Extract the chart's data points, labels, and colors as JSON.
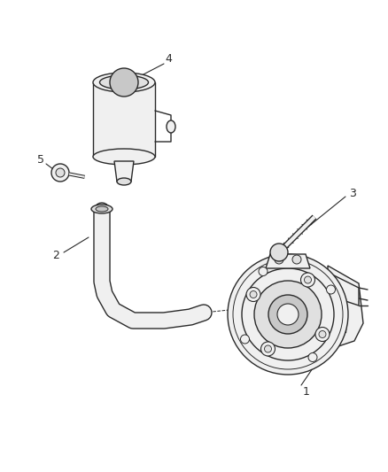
{
  "background_color": "#ffffff",
  "line_color": "#2a2a2a",
  "figsize": [
    4.38,
    5.33
  ],
  "dpi": 100,
  "fill_light": "#f0f0f0",
  "fill_mid": "#e0e0e0",
  "fill_dark": "#c8c8c8"
}
